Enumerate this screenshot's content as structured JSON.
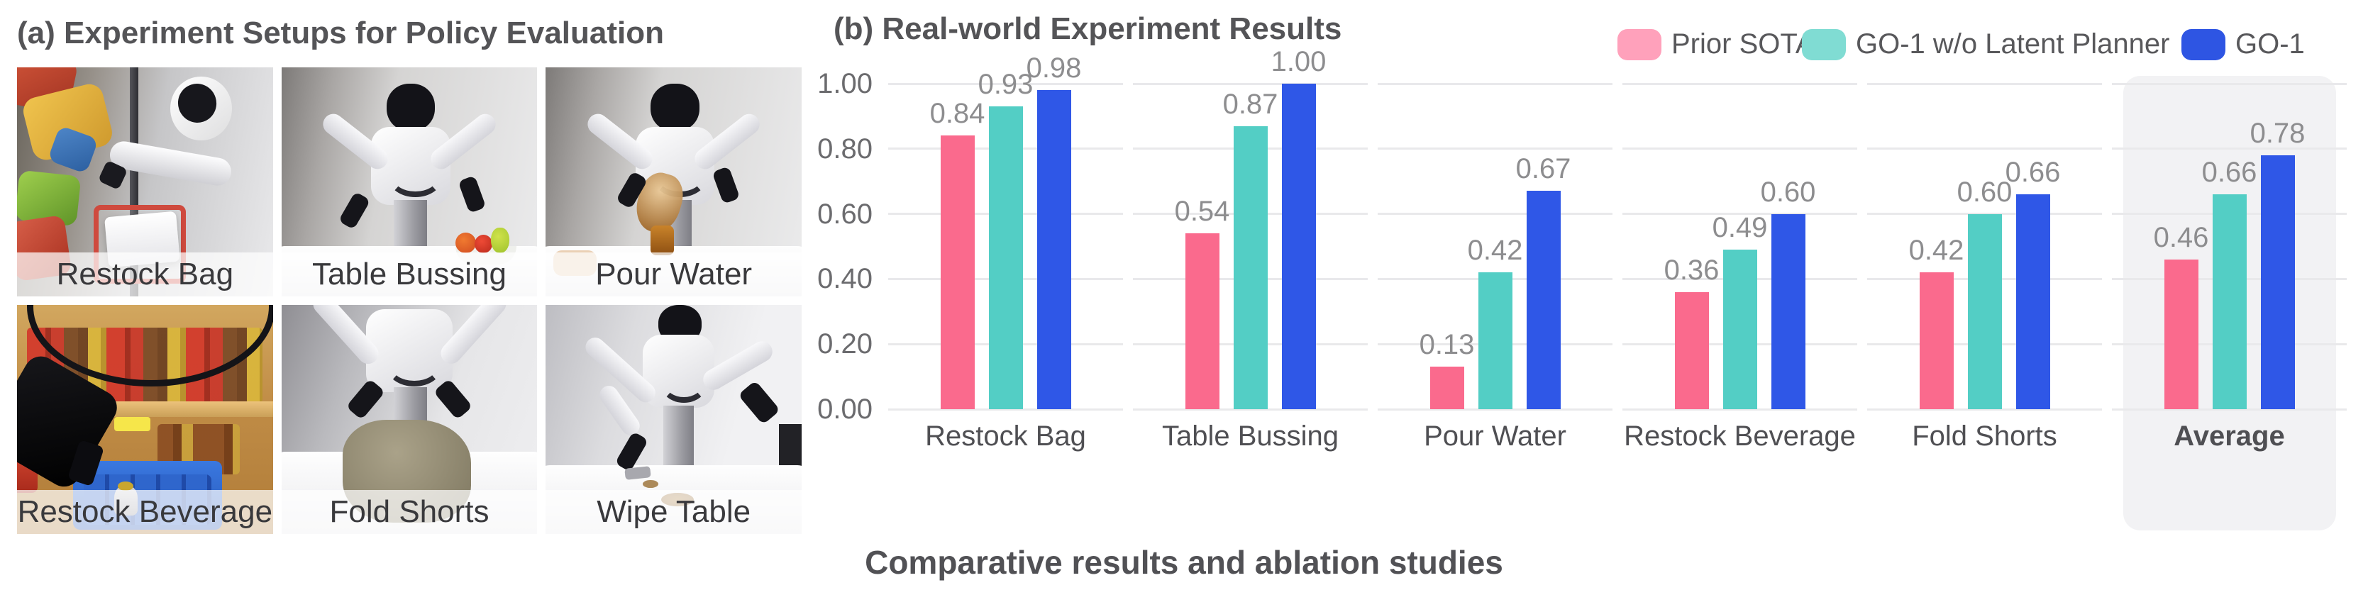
{
  "panel_a": {
    "title": "(a) Experiment Setups for Policy Evaluation",
    "photos": [
      {
        "label": "Restock Bag"
      },
      {
        "label": "Table Bussing"
      },
      {
        "label": "Pour Water"
      },
      {
        "label": "Restock Beverage"
      },
      {
        "label": "Fold Shorts"
      },
      {
        "label": "Wipe Table"
      }
    ]
  },
  "panel_b": {
    "title": "(b) Real-world Experiment Results",
    "caption": "Comparative results and ablation studies"
  },
  "chart_data": {
    "type": "bar",
    "title": "(b) Real-world Experiment Results",
    "categories": [
      "Restock Bag",
      "Table Bussing",
      "Pour Water",
      "Restock Beverage",
      "Fold Shorts",
      "Average"
    ],
    "highlighted_category": "Average",
    "series": [
      {
        "name": "Prior SOTA",
        "color": "#FA6A8D",
        "legend_color": "#FFA1BB",
        "values": [
          0.84,
          0.54,
          0.13,
          0.36,
          0.42,
          0.46
        ]
      },
      {
        "name": "GO-1 w/o Latent Planner",
        "color": "#53CEC5",
        "legend_color": "#80DCD3",
        "values": [
          0.93,
          0.87,
          0.42,
          0.49,
          0.6,
          0.66
        ]
      },
      {
        "name": "GO-1",
        "color": "#2F57E7",
        "legend_color": "#2E55E3",
        "values": [
          0.98,
          1.0,
          0.67,
          0.6,
          0.66,
          0.78
        ]
      }
    ],
    "ylim": [
      0,
      1
    ],
    "yticks": [
      "0.00",
      "0.20",
      "0.40",
      "0.60",
      "0.80",
      "1.00"
    ],
    "grid": true,
    "grid_color": "#E9E9EB",
    "value_labels": true,
    "legend_position": "top-right",
    "xlabel": "",
    "ylabel": ""
  }
}
